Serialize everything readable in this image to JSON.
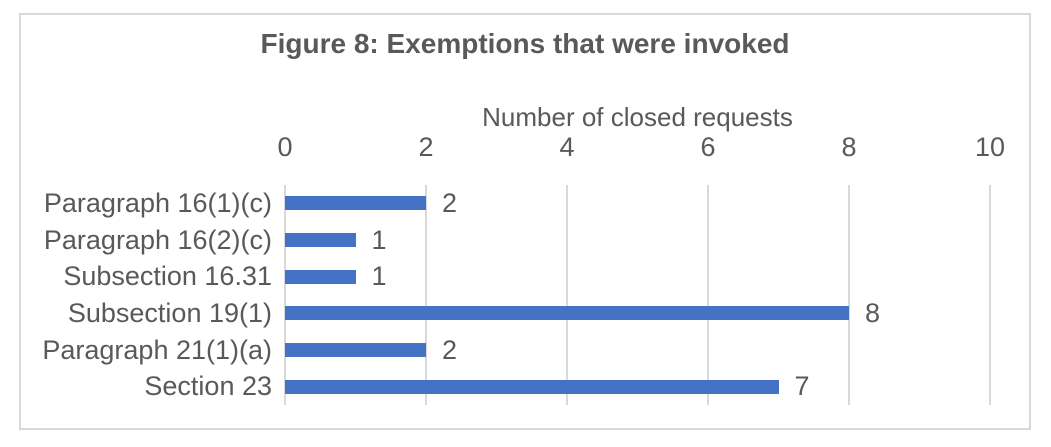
{
  "chart_data": {
    "type": "bar",
    "orientation": "horizontal",
    "title": "Figure 8: Exemptions that were invoked",
    "xlabel": "Number of closed requests",
    "ylabel": "",
    "categories": [
      "Paragraph 16(1)(c)",
      "Paragraph 16(2)(c)",
      "Subsection 16.31",
      "Subsection 19(1)",
      "Paragraph 21(1)(a)",
      "Section 23"
    ],
    "values": [
      2,
      1,
      1,
      8,
      2,
      7
    ],
    "data_labels": [
      "2",
      "1",
      "1",
      "8",
      "2",
      "7"
    ],
    "xlim": [
      0,
      10
    ],
    "xticks": [
      0,
      2,
      4,
      6,
      8,
      10
    ],
    "grid": "vertical-gridlines-on",
    "legend": "none",
    "colors": {
      "bar": "#4472C4",
      "text": "#595959",
      "gridline": "#D9D9D9",
      "border": "#D9D9D9",
      "background": "#FFFFFF"
    }
  }
}
